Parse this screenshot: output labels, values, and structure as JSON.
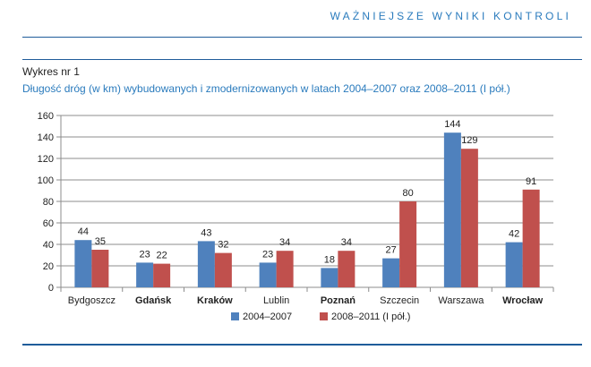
{
  "header": {
    "section_title": "WAŻNIEJSZE WYNIKI KONTROLI"
  },
  "figure": {
    "label": "Wykres nr 1",
    "title": "Długość dróg (w km) wybudowanych i zmodernizowanych w latach 2004–2007 oraz 2008–2011 (I pół.)"
  },
  "colors": {
    "series_1": "#4f81bd",
    "series_2": "#c0504d",
    "accent": "#2a7bbd",
    "rule": "#1f5c9a"
  },
  "chart_data": {
    "type": "bar",
    "categories": [
      "Bydgoszcz",
      "Gdańsk",
      "Kraków",
      "Lublin",
      "Poznań",
      "Szczecin",
      "Warszawa",
      "Wrocław"
    ],
    "bold_categories": [
      "Gdańsk",
      "Kraków",
      "Poznań",
      "Wrocław"
    ],
    "series": [
      {
        "name": "2004–2007",
        "values": [
          44,
          23,
          43,
          23,
          18,
          27,
          144,
          42
        ]
      },
      {
        "name": "2008–2011 (I pół.)",
        "values": [
          35,
          22,
          32,
          34,
          34,
          80,
          129,
          91
        ]
      }
    ],
    "ylim": [
      0,
      160
    ],
    "yticks": [
      0,
      20,
      40,
      60,
      80,
      100,
      120,
      140,
      160
    ],
    "grid": true,
    "legend": "bottom"
  }
}
